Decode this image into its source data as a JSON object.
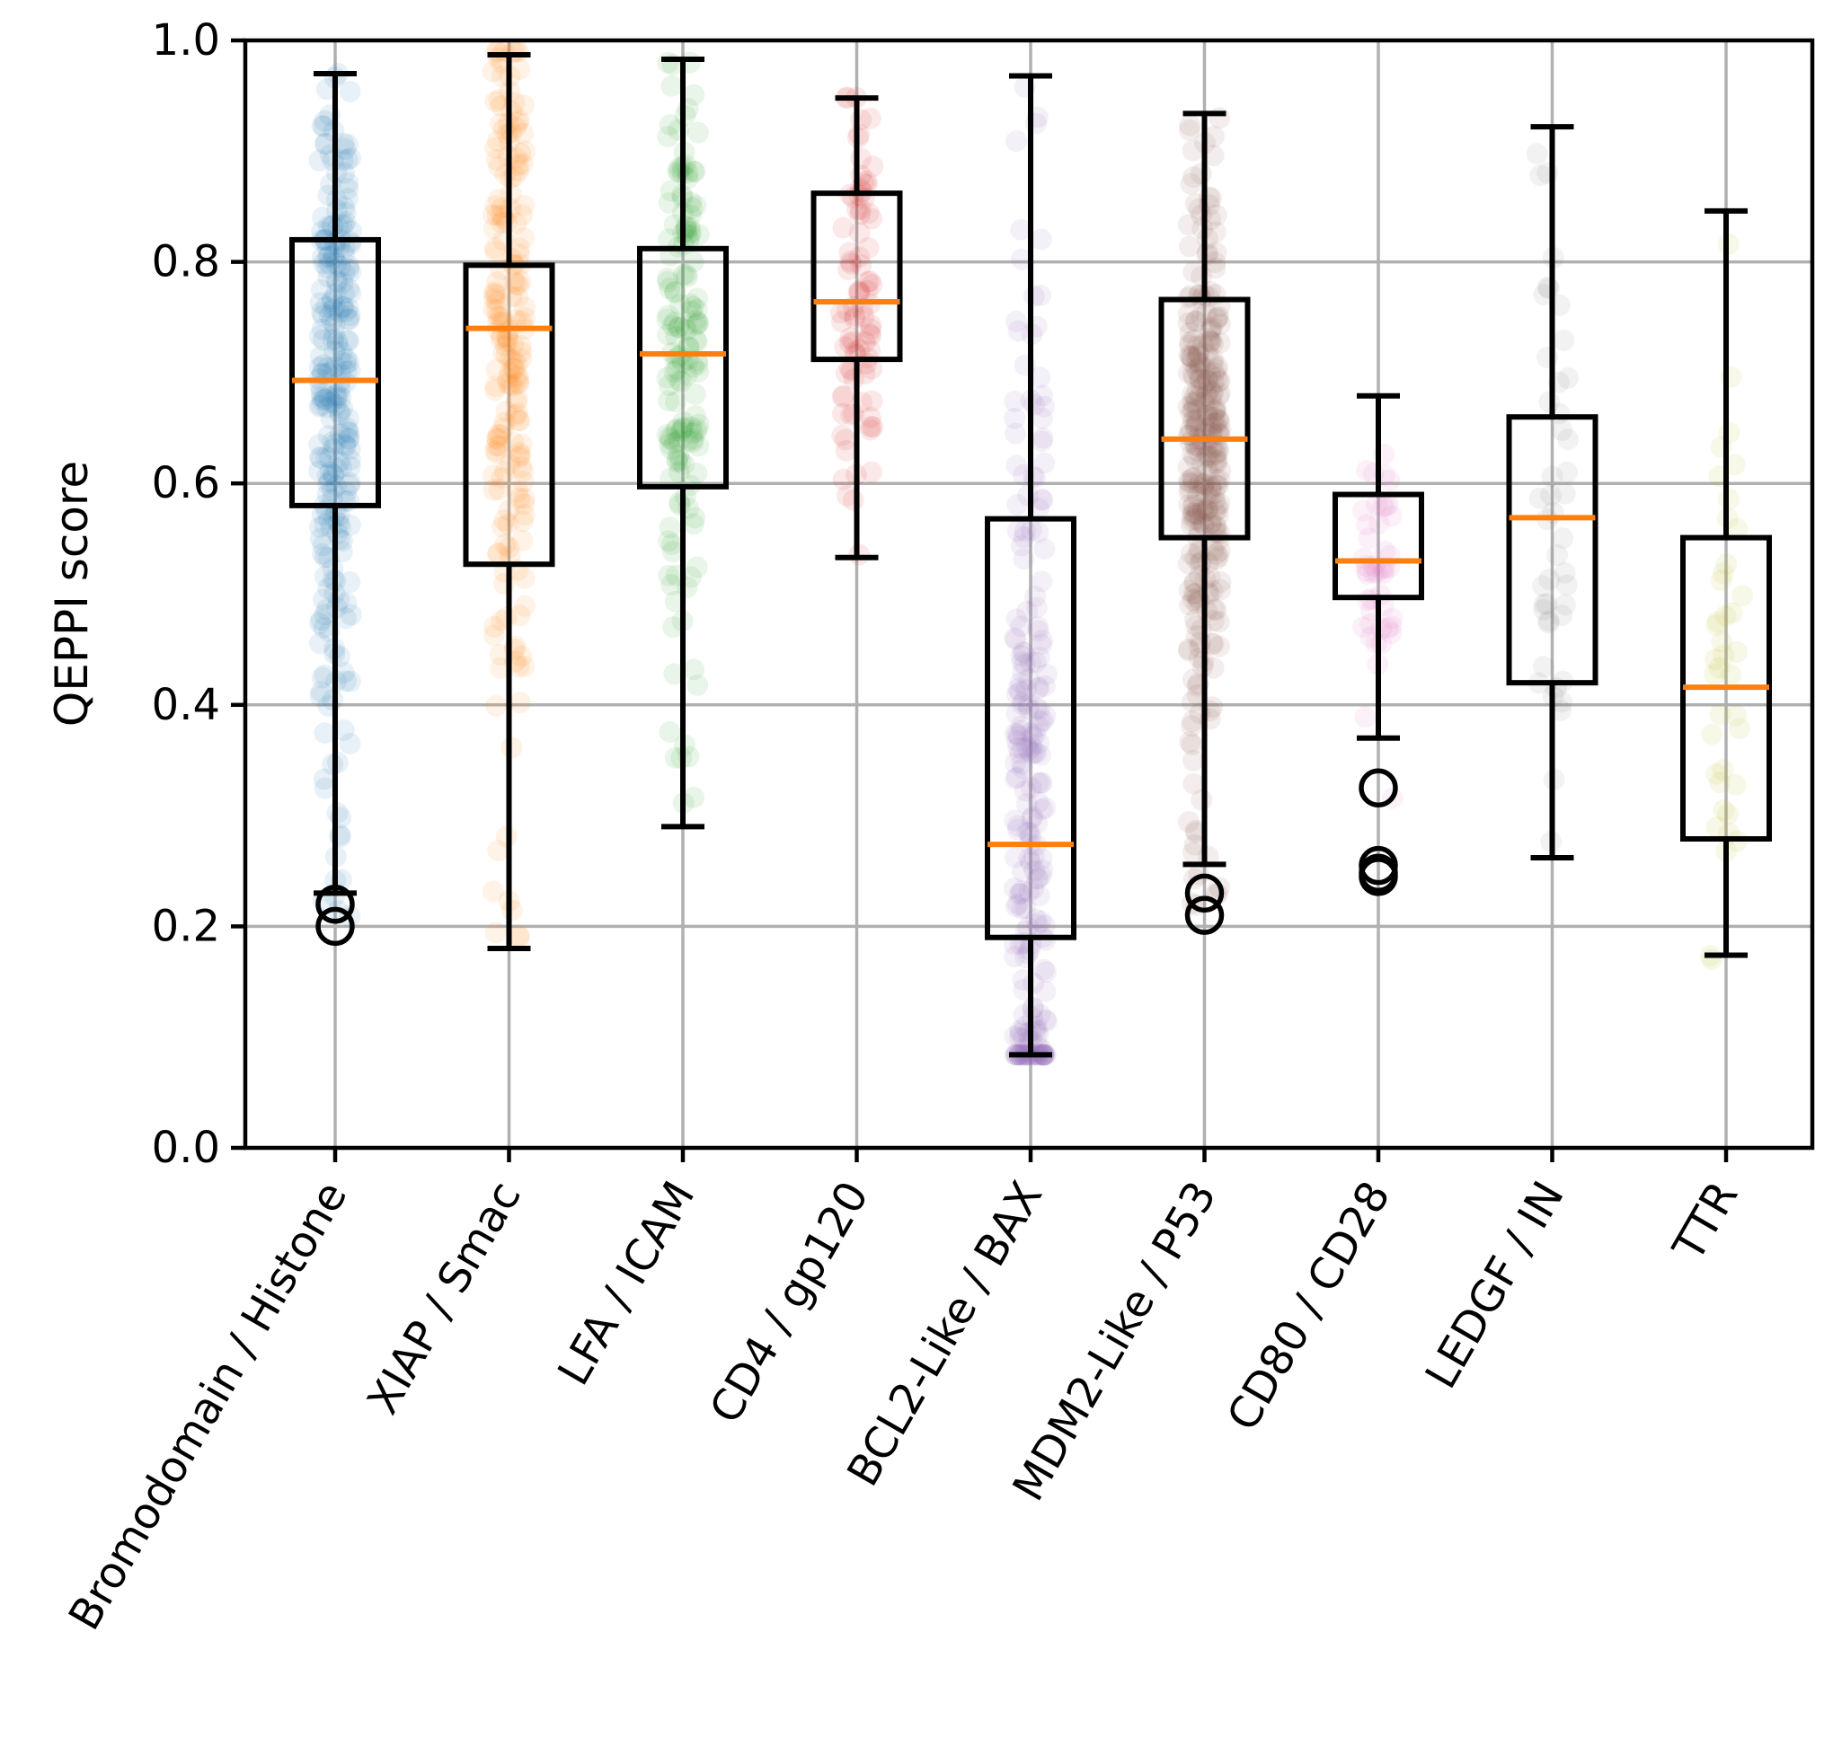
{
  "chart_data": {
    "type": "box",
    "title": "",
    "xlabel": "",
    "ylabel": "QEPPI score",
    "ylim": [
      0.0,
      1.0
    ],
    "yticks": [
      0.0,
      0.2,
      0.4,
      0.6,
      0.8,
      1.0
    ],
    "ytick_labels": [
      "0.0",
      "0.2",
      "0.4",
      "0.6",
      "0.8",
      "1.0"
    ],
    "grid": true,
    "jitter_points_overlay": true,
    "categories": [
      "Bromodomain / Histone",
      "XIAP / Smac",
      "LFA / ICAM",
      "CD4 / gp120",
      "BCL2-Like / BAX",
      "MDM2-Like / P53",
      "CD80 / CD28",
      "LEDGF / IN",
      "TTR"
    ],
    "series": [
      {
        "whislo": 0.23,
        "q1": 0.58,
        "med": 0.693,
        "q3": 0.82,
        "whishi": 0.97,
        "fliers": [
          0.22,
          0.2
        ],
        "color": "#1f77b4",
        "point_range": [
          0.2,
          0.97
        ],
        "point_center": 0.72,
        "n_points": 260
      },
      {
        "whislo": 0.18,
        "q1": 0.527,
        "med": 0.74,
        "q3": 0.797,
        "whishi": 0.987,
        "fliers": [],
        "color": "#ff7f0e",
        "point_range": [
          0.18,
          0.99
        ],
        "point_center": 0.7,
        "n_points": 200
      },
      {
        "whislo": 0.29,
        "q1": 0.597,
        "med": 0.717,
        "q3": 0.812,
        "whishi": 0.983,
        "fliers": [],
        "color": "#2ca02c",
        "point_range": [
          0.29,
          0.98
        ],
        "point_center": 0.72,
        "n_points": 160
      },
      {
        "whislo": 0.533,
        "q1": 0.712,
        "med": 0.764,
        "q3": 0.862,
        "whishi": 0.948,
        "fliers": [],
        "color": "#d62728",
        "point_range": [
          0.53,
          0.95
        ],
        "point_center": 0.77,
        "n_points": 90
      },
      {
        "whislo": 0.084,
        "q1": 0.19,
        "med": 0.274,
        "q3": 0.568,
        "whishi": 0.968,
        "fliers": [],
        "color": "#9467bd",
        "point_range": [
          0.084,
          0.97
        ],
        "point_center": 0.24,
        "n_points": 230
      },
      {
        "whislo": 0.256,
        "q1": 0.551,
        "med": 0.64,
        "q3": 0.766,
        "whishi": 0.934,
        "fliers": [
          0.23,
          0.21
        ],
        "color": "#8c564b",
        "point_range": [
          0.21,
          0.93
        ],
        "point_center": 0.66,
        "n_points": 320
      },
      {
        "whislo": 0.37,
        "q1": 0.497,
        "med": 0.53,
        "q3": 0.59,
        "whishi": 0.679,
        "fliers": [
          0.325,
          0.255,
          0.248,
          0.245
        ],
        "color": "#e377c2",
        "point_range": [
          0.245,
          0.68
        ],
        "point_center": 0.54,
        "n_points": 45
      },
      {
        "whislo": 0.262,
        "q1": 0.42,
        "med": 0.569,
        "q3": 0.66,
        "whishi": 0.922,
        "fliers": [],
        "color": "#7f7f7f",
        "point_range": [
          0.26,
          0.92
        ],
        "point_center": 0.56,
        "n_points": 45
      },
      {
        "whislo": 0.174,
        "q1": 0.279,
        "med": 0.416,
        "q3": 0.551,
        "whishi": 0.846,
        "fliers": [],
        "color": "#bcbd22",
        "point_range": [
          0.17,
          0.85
        ],
        "point_center": 0.42,
        "n_points": 40
      }
    ]
  }
}
